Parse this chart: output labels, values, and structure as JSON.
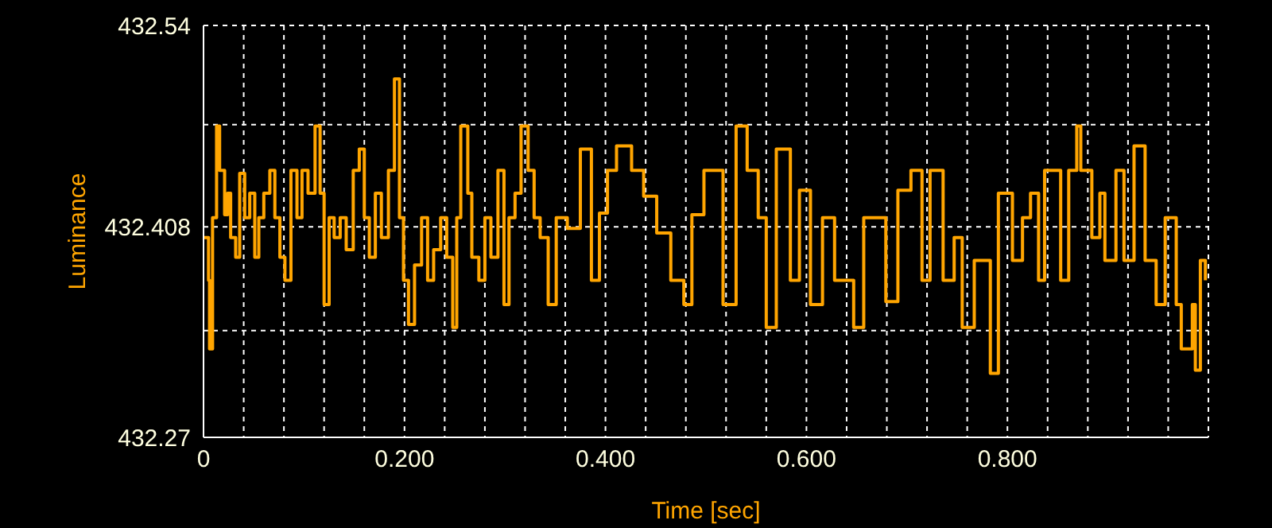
{
  "chart_data": {
    "type": "step",
    "xlabel": "Time [sec]",
    "ylabel": "Luminance",
    "color": "#ffa500",
    "grid": true,
    "xlim": [
      0,
      1
    ],
    "xticks": [
      0,
      {
        "value": 0.04,
        "label": null
      },
      {
        "value": 0.08,
        "label": null
      },
      {
        "value": 0.12,
        "label": null
      },
      {
        "value": 0.16,
        "label": null
      },
      {
        "value": 0.2,
        "label": "0.200"
      },
      {
        "value": 0.24,
        "label": null
      },
      {
        "value": 0.28,
        "label": null
      },
      {
        "value": 0.32,
        "label": null
      },
      {
        "value": 0.36,
        "label": null
      },
      {
        "value": 0.4,
        "label": "0.400"
      },
      {
        "value": 0.44,
        "label": null
      },
      {
        "value": 0.48,
        "label": null
      },
      {
        "value": 0.52,
        "label": null
      },
      {
        "value": 0.56,
        "label": null
      },
      {
        "value": 0.6,
        "label": "0.600"
      },
      {
        "value": 0.64,
        "label": null
      },
      {
        "value": 0.68,
        "label": null
      },
      {
        "value": 0.72,
        "label": null
      },
      {
        "value": 0.76,
        "label": null
      },
      {
        "value": 0.8,
        "label": "0.800"
      },
      {
        "value": 0.84,
        "label": null
      },
      {
        "value": 0.88,
        "label": null
      },
      {
        "value": 0.92,
        "label": null
      },
      {
        "value": 0.96,
        "label": null
      }
    ],
    "ylim": [
      432.27,
      432.54
    ],
    "yticks": [
      432.27,
      {
        "value": 432.34,
        "label": null
      },
      432.408,
      {
        "value": 432.475,
        "label": null
      },
      432.54
    ],
    "x": [
      0.0,
      0.005,
      0.006,
      0.009,
      0.013,
      0.016,
      0.021,
      0.024,
      0.027,
      0.032,
      0.036,
      0.041,
      0.046,
      0.051,
      0.055,
      0.06,
      0.066,
      0.071,
      0.076,
      0.081,
      0.087,
      0.093,
      0.098,
      0.104,
      0.111,
      0.116,
      0.12,
      0.125,
      0.13,
      0.136,
      0.142,
      0.149,
      0.155,
      0.16,
      0.165,
      0.171,
      0.177,
      0.184,
      0.19,
      0.195,
      0.199,
      0.204,
      0.21,
      0.217,
      0.223,
      0.229,
      0.236,
      0.242,
      0.248,
      0.252,
      0.256,
      0.263,
      0.267,
      0.274,
      0.28,
      0.286,
      0.293,
      0.299,
      0.304,
      0.31,
      0.316,
      0.323,
      0.329,
      0.335,
      0.343,
      0.351,
      0.362,
      0.375,
      0.386,
      0.394,
      0.402,
      0.411,
      0.426,
      0.438,
      0.451,
      0.465,
      0.478,
      0.486,
      0.498,
      0.517,
      0.53,
      0.536,
      0.541,
      0.552,
      0.56,
      0.57,
      0.584,
      0.593,
      0.604,
      0.616,
      0.628,
      0.647,
      0.657,
      0.663,
      0.679,
      0.691,
      0.704,
      0.715,
      0.723,
      0.736,
      0.747,
      0.755,
      0.767,
      0.783,
      0.791,
      0.805,
      0.815,
      0.823,
      0.831,
      0.837,
      0.853,
      0.861,
      0.869,
      0.873,
      0.884,
      0.892,
      0.897,
      0.908,
      0.916,
      0.926,
      0.937,
      0.948,
      0.957,
      0.968,
      0.973,
      0.984,
      0.987,
      0.992,
      0.997
    ],
    "values": [
      432.401,
      432.373,
      432.328,
      432.414,
      432.474,
      432.445,
      432.416,
      432.43,
      432.401,
      432.388,
      432.443,
      432.414,
      432.43,
      432.388,
      432.414,
      432.43,
      432.445,
      432.414,
      432.388,
      432.373,
      432.445,
      432.414,
      432.445,
      432.43,
      432.474,
      432.43,
      432.357,
      432.414,
      432.401,
      432.414,
      432.393,
      432.445,
      432.459,
      432.414,
      432.388,
      432.43,
      432.401,
      432.445,
      432.505,
      432.414,
      432.373,
      432.344,
      432.383,
      432.414,
      432.373,
      432.393,
      432.414,
      432.388,
      432.342,
      432.414,
      432.474,
      432.43,
      432.388,
      432.373,
      432.414,
      432.388,
      432.445,
      432.357,
      432.414,
      432.43,
      432.474,
      432.445,
      432.414,
      432.401,
      432.357,
      432.414,
      432.407,
      432.459,
      432.373,
      432.417,
      432.445,
      432.461,
      432.445,
      432.428,
      432.404,
      432.373,
      432.357,
      432.416,
      432.445,
      432.357,
      432.474,
      432.474,
      432.445,
      432.414,
      432.342,
      432.459,
      432.373,
      432.432,
      432.357,
      432.414,
      432.373,
      432.342,
      432.414,
      432.414,
      432.359,
      432.432,
      432.445,
      432.373,
      432.445,
      432.373,
      432.401,
      432.342,
      432.386,
      432.312,
      432.43,
      432.386,
      432.414,
      432.43,
      432.373,
      432.445,
      432.373,
      432.445,
      432.474,
      432.445,
      432.401,
      432.43,
      432.386,
      432.445,
      432.386,
      432.461,
      432.386,
      432.357,
      432.414,
      432.357,
      432.328,
      432.357,
      432.314,
      432.386,
      432.373
    ]
  }
}
